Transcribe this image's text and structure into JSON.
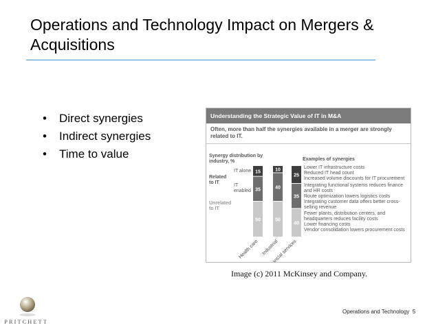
{
  "slide": {
    "title": "Operations and Technology Impact on Mergers & Acquisitions",
    "bullets": [
      "Direct synergies",
      "Indirect synergies",
      "Time to value"
    ],
    "caption": "Image (c) 2011 McKinsey and Company.",
    "footer": "Operations and Technology",
    "page_number": "5",
    "logo_text": "PRITCHETT",
    "accent_color": "#3a8fd0"
  },
  "figure": {
    "header": "Understanding the Strategic Value of IT in M&A",
    "subheader": "Often, more than half the synergies available in a merger are strongly related to IT.",
    "left_title": "Synergy distribution by industry, %",
    "related_label": "Related to IT",
    "it_alone_label": "IT alone",
    "it_enabled_label": "IT enabled",
    "unrelated_label": "Unrelated to IT",
    "examples_title": "Examples of synergies",
    "examples": [
      [
        "Lower IT infrastructure costs",
        "Reduced IT head count",
        "Increased volume discounts for IT procurement"
      ],
      [
        "Integrating functional systems reduces finance and HR costs",
        "Route optimization lowers logistics costs",
        "Integrating customer data offers better cross-selling revenue"
      ],
      [
        "Fewer plants, distribution centers, and headquarters reduces facility costs",
        "Lower financing costs",
        "Vendor consolidation lowers procurement costs"
      ]
    ]
  },
  "chart_data": {
    "type": "bar",
    "stacked": true,
    "categories": [
      "Health care",
      "Industrial",
      "Financial services"
    ],
    "series": [
      {
        "name": "IT alone",
        "values": [
          15,
          10,
          25
        ],
        "color": "#3d3d3d"
      },
      {
        "name": "IT enabled",
        "values": [
          35,
          40,
          35
        ],
        "color": "#6e6e6e"
      },
      {
        "name": "Unrelated to IT",
        "values": [
          50,
          50,
          40
        ],
        "color": "#c9c9c9"
      }
    ],
    "ylabel": "Synergy distribution by industry, %",
    "ylim": [
      0,
      100
    ]
  }
}
